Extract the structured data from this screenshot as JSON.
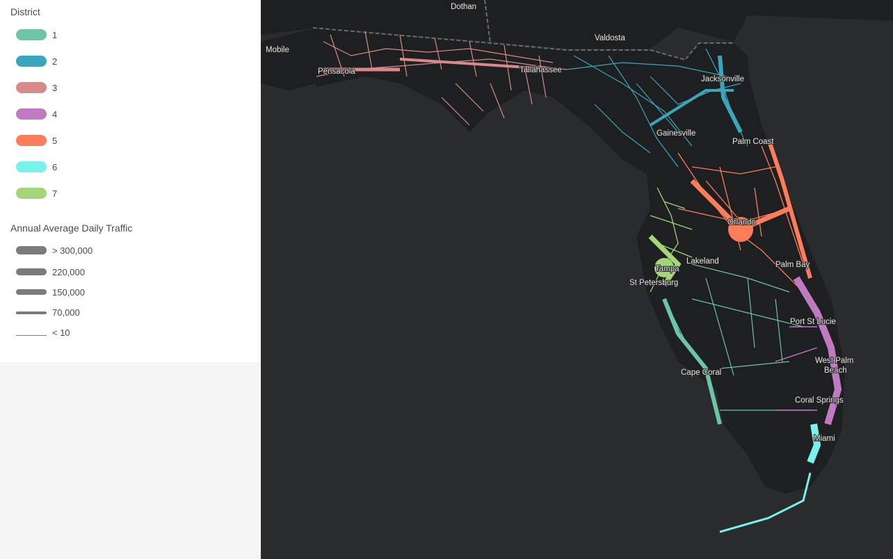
{
  "legend": {
    "district_title": "District",
    "districts": [
      {
        "label": "1",
        "color": "#6cc5a6"
      },
      {
        "label": "2",
        "color": "#3aa6bd"
      },
      {
        "label": "3",
        "color": "#d88a8a"
      },
      {
        "label": "4",
        "color": "#c07ac2"
      },
      {
        "label": "5",
        "color": "#fd7d5b"
      },
      {
        "label": "6",
        "color": "#78f2ea"
      },
      {
        "label": "7",
        "color": "#a4d57a"
      }
    ],
    "traffic_title": "Annual Average Daily Traffic",
    "traffic_classes": [
      {
        "label": "> 300,000"
      },
      {
        "label": "220,000"
      },
      {
        "label": "150,000"
      },
      {
        "label": "70,000"
      },
      {
        "label": "< 10"
      }
    ],
    "traffic_color": "#7b7b7b"
  },
  "map": {
    "background": "#2a2b2d",
    "land_color": "#1e1f21",
    "cities": {
      "dothan": "Dothan",
      "valdosta": "Valdosta",
      "mobile": "Mobile",
      "pensacola": "Pensacola",
      "tallahassee": "Tallahassee",
      "jacksonville": "Jacksonville",
      "gainesville": "Gainesville",
      "palm_coast": "Palm Coast",
      "orlando": "Orlando",
      "palm_bay": "Palm Bay",
      "lakeland": "Lakeland",
      "tampa": "Tampa",
      "st_petersburg": "St Petersburg",
      "port_st_lucie": "Port St Lucie",
      "west_palm_1": "West Palm",
      "west_palm_2": "Beach",
      "cape_coral": "Cape Coral",
      "coral_springs": "Coral Springs",
      "miami": "Miami"
    }
  }
}
